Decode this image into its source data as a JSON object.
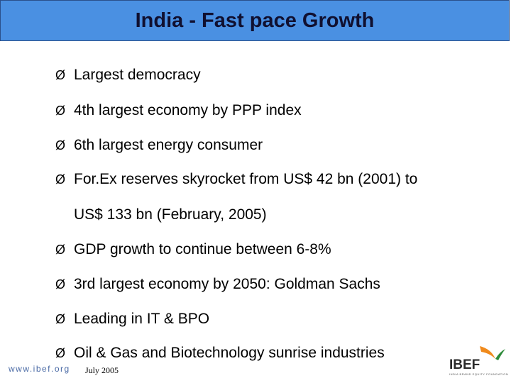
{
  "slide": {
    "title": "India - Fast pace Growth"
  },
  "bullets": [
    {
      "text": "Largest democracy"
    },
    {
      "text": "4th largest economy by PPP index"
    },
    {
      "text": "6th largest energy consumer"
    },
    {
      "text": "For.Ex reserves skyrocket from US$ 42 bn (2001) to",
      "continuation": "US$ 133 bn (February, 2005)"
    },
    {
      "text": "GDP growth to continue between 6-8%"
    },
    {
      "text": "3rd largest economy by 2050: Goldman Sachs"
    },
    {
      "text": "Leading in IT & BPO"
    },
    {
      "text": "Oil & Gas and Biotechnology sunrise industries"
    }
  ],
  "bullet_glyph": "Ø",
  "footer": {
    "url": "www.ibef.org",
    "date": "July 2005"
  },
  "logo": {
    "text": "IBEF",
    "subtitle": "INDIA BRAND EQUITY FOUNDATION",
    "colors": {
      "orange": "#f08a1c",
      "green": "#2e8b3a"
    }
  },
  "colors": {
    "title_bar": "#4a90e2",
    "title_text": "#101030",
    "url_text": "#4a6aa5"
  }
}
